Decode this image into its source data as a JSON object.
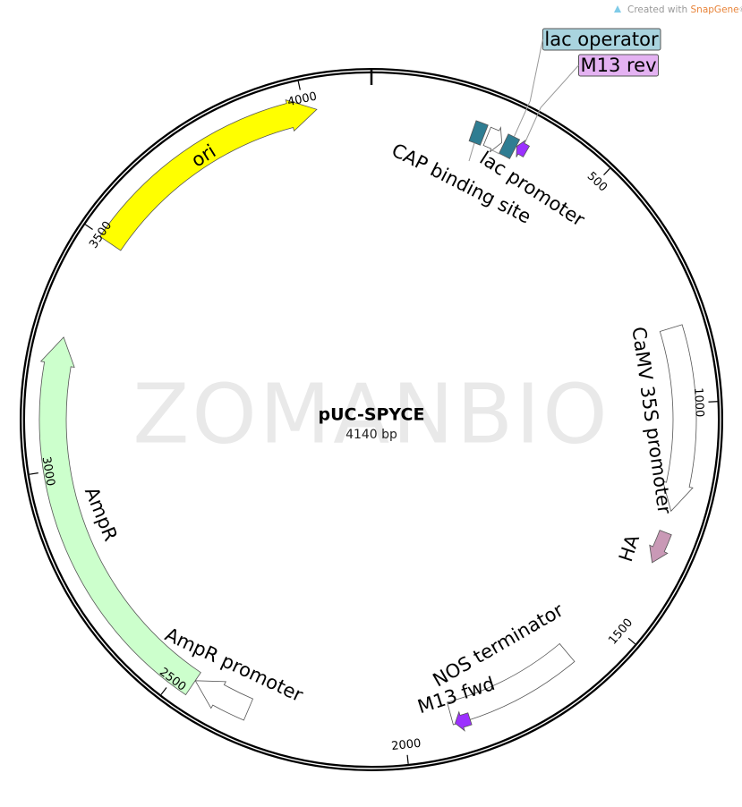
{
  "header": {
    "credit": "Created with",
    "brand": "SnapGene",
    "trademark": "®"
  },
  "watermark": "ZOMANBIO",
  "plasmid": {
    "name": "pUC-SPYCE",
    "size": "4140 bp"
  },
  "features": [
    {
      "label": "ori"
    },
    {
      "label": "CAP binding site"
    },
    {
      "label": "lac promoter"
    },
    {
      "label": "lac operator"
    },
    {
      "label": "M13 rev"
    },
    {
      "label": "CaMV 35S promoter"
    },
    {
      "label": "HA"
    },
    {
      "label": "NOS terminator"
    },
    {
      "label": "M13 fwd"
    },
    {
      "label": "AmpR promoter"
    },
    {
      "label": "AmpR"
    }
  ],
  "ticks": [
    "500",
    "1000",
    "1500",
    "2000",
    "2500",
    "3000",
    "3500",
    "4000"
  ]
}
